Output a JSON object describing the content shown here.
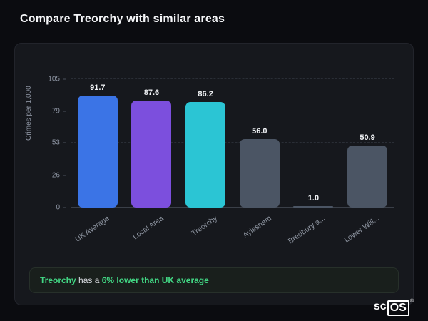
{
  "page": {
    "title": "Compare Treorchy with similar areas"
  },
  "chart_data": {
    "type": "bar",
    "title": "Compare Treorchy with similar areas",
    "categories": [
      "UK Average",
      "Local Area",
      "Treorchy",
      "Aylesham",
      "Bredbury a...",
      "Lower Will..."
    ],
    "values": [
      91.7,
      87.6,
      86.2,
      56.0,
      1.0,
      50.9
    ],
    "value_labels": [
      "91.7",
      "87.6",
      "86.2",
      "56.0",
      "1.0",
      "50.9"
    ],
    "bar_colors": [
      "#3b74e6",
      "#7c4fdd",
      "#2bc5d4",
      "#4b5564",
      "#4b5564",
      "#4b5564"
    ],
    "xlabel": "",
    "ylabel": "Crimes per 1,000",
    "yticks": [
      0,
      26,
      53,
      79,
      105
    ],
    "ylim": [
      0,
      105
    ],
    "grid": "dashed-horizontal",
    "legend": "none"
  },
  "insight": {
    "subject": "Treorchy",
    "connector": " has a ",
    "highlight": "6% lower than UK average"
  },
  "logo": {
    "prefix": "sc",
    "boxed": "OS",
    "registered": "®"
  }
}
